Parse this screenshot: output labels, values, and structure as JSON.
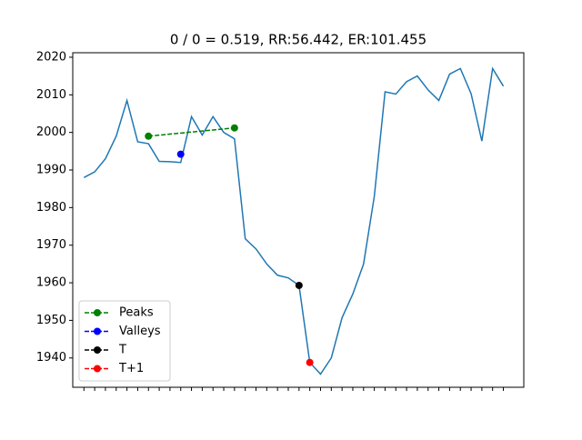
{
  "chart_data": {
    "type": "line",
    "title": "0 / 0 = 0.519, RR:56.442, ER:101.455",
    "categories": [
      null,
      null,
      null,
      null,
      null,
      null,
      null,
      null,
      null,
      null,
      null,
      null,
      null,
      null,
      null,
      null,
      null,
      null,
      null,
      null,
      null,
      null,
      null,
      null,
      null,
      null,
      null,
      null,
      null,
      null,
      null,
      null,
      null,
      null,
      null,
      null,
      null,
      null,
      null,
      null
    ],
    "values": [
      1988,
      1989.5,
      1993,
      1999,
      2008.5,
      1997.5,
      1997,
      1992.3,
      1992.2,
      1992,
      2004.2,
      1999.3,
      2004.2,
      2000,
      1998.3,
      1971.7,
      1969,
      1965,
      1962,
      1961.3,
      1959.3,
      1938.8,
      1935.7,
      1940,
      1950.7,
      1957,
      1965,
      1983,
      2010.8,
      2010.2,
      2013.5,
      2015,
      2011.3,
      2008.5,
      2015.5,
      2017,
      2010.3,
      1997.7,
      2017,
      2012.3
    ],
    "color": "#1f77b4",
    "series": [
      {
        "name": "Peaks",
        "color": "green",
        "x": [
          6,
          14
        ],
        "values": [
          1999,
          2001.2
        ]
      },
      {
        "name": "Valleys",
        "color": "blue",
        "x": [
          9
        ],
        "values": [
          1994.2
        ]
      },
      {
        "name": "T",
        "color": "black",
        "x": [
          20
        ],
        "values": [
          1959.3
        ]
      },
      {
        "name": "T+1",
        "color": "red",
        "x": [
          21
        ],
        "values": [
          1938.8
        ]
      }
    ],
    "xlim": [
      -1.04,
      40.9
    ],
    "ylim": [
      1932.2,
      2021.2
    ],
    "yticks": [
      1940,
      1950,
      1960,
      1970,
      1980,
      1990,
      2000,
      2010,
      2020
    ],
    "legend": "lower left"
  }
}
